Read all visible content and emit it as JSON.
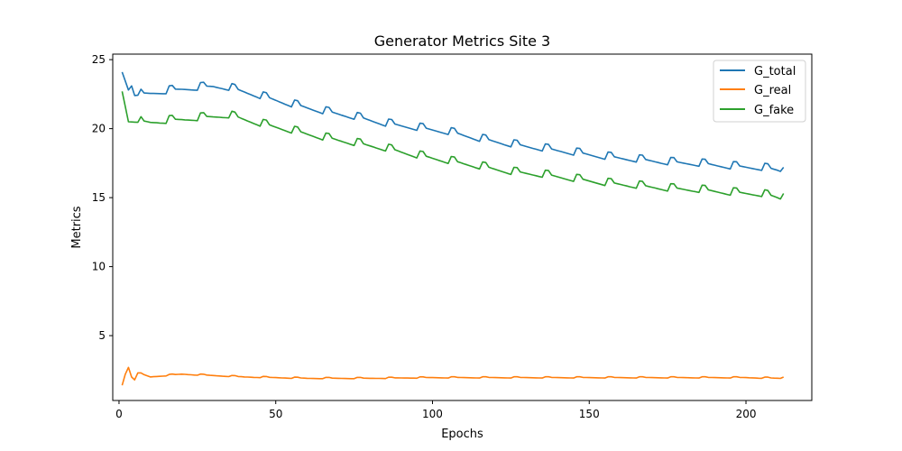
{
  "chart_data": {
    "type": "line",
    "title": "Generator Metrics Site 3",
    "xlabel": "Epochs",
    "ylabel": "Metrics",
    "xlim": [
      -2,
      221
    ],
    "ylim": [
      0.3,
      25.4
    ],
    "xticks": [
      0,
      50,
      100,
      150,
      200
    ],
    "yticks": [
      5,
      10,
      15,
      20,
      25
    ],
    "grid": false,
    "legend_position": "top-right",
    "series": [
      {
        "name": "G_total",
        "color": "#1f77b4",
        "start": 24.1,
        "end": 17.2,
        "max_index": 213,
        "keyframes": [
          [
            1,
            24.1
          ],
          [
            3,
            22.8
          ],
          [
            4,
            23.1
          ],
          [
            5,
            22.4
          ],
          [
            10,
            22.5
          ],
          [
            20,
            22.8
          ],
          [
            30,
            23.0
          ],
          [
            35,
            22.9
          ],
          [
            45,
            22.3
          ],
          [
            55,
            21.7
          ],
          [
            65,
            21.2
          ],
          [
            75,
            20.8
          ],
          [
            85,
            20.3
          ],
          [
            95,
            20.0
          ],
          [
            105,
            19.7
          ],
          [
            115,
            19.2
          ],
          [
            125,
            18.8
          ],
          [
            135,
            18.5
          ],
          [
            145,
            18.2
          ],
          [
            155,
            17.9
          ],
          [
            165,
            17.7
          ],
          [
            175,
            17.5
          ],
          [
            185,
            17.4
          ],
          [
            195,
            17.2
          ],
          [
            205,
            17.1
          ],
          [
            211,
            16.9
          ],
          [
            212,
            17.2
          ]
        ],
        "amplitude": 0.35
      },
      {
        "name": "G_real",
        "color": "#ff7f0e",
        "start": 1.4,
        "end": 2.0,
        "max_index": 213,
        "keyframes": [
          [
            1,
            1.4
          ],
          [
            2,
            2.2
          ],
          [
            3,
            2.7
          ],
          [
            4,
            2.0
          ],
          [
            5,
            1.8
          ],
          [
            6,
            2.3
          ],
          [
            10,
            2.0
          ],
          [
            15,
            2.1
          ],
          [
            20,
            2.2
          ],
          [
            30,
            2.1
          ],
          [
            40,
            2.0
          ],
          [
            60,
            1.9
          ],
          [
            80,
            1.9
          ],
          [
            100,
            1.95
          ],
          [
            120,
            1.95
          ],
          [
            140,
            1.95
          ],
          [
            160,
            1.95
          ],
          [
            180,
            1.95
          ],
          [
            200,
            1.95
          ],
          [
            211,
            1.9
          ],
          [
            212,
            2.0
          ]
        ],
        "amplitude": 0.06
      },
      {
        "name": "G_fake",
        "color": "#2ca02c",
        "start": 22.7,
        "end": 15.3,
        "max_index": 213,
        "keyframes": [
          [
            1,
            22.7
          ],
          [
            3,
            20.5
          ],
          [
            10,
            20.4
          ],
          [
            20,
            20.6
          ],
          [
            30,
            20.8
          ],
          [
            35,
            20.9
          ],
          [
            45,
            20.3
          ],
          [
            55,
            19.8
          ],
          [
            65,
            19.3
          ],
          [
            75,
            18.9
          ],
          [
            85,
            18.5
          ],
          [
            95,
            18.0
          ],
          [
            105,
            17.6
          ],
          [
            115,
            17.2
          ],
          [
            125,
            16.8
          ],
          [
            135,
            16.6
          ],
          [
            145,
            16.3
          ],
          [
            155,
            16.0
          ],
          [
            165,
            15.8
          ],
          [
            175,
            15.6
          ],
          [
            185,
            15.5
          ],
          [
            195,
            15.3
          ],
          [
            205,
            15.2
          ],
          [
            211,
            14.9
          ],
          [
            212,
            15.3
          ]
        ],
        "amplitude": 0.35
      }
    ]
  }
}
